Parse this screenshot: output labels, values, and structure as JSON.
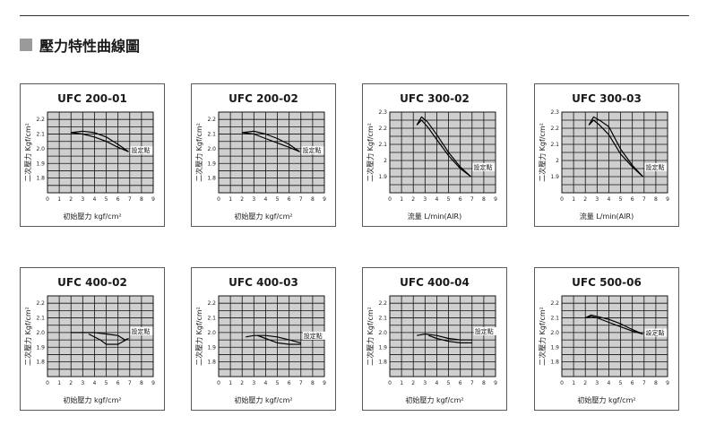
{
  "section": {
    "title": "壓力特性曲線圖"
  },
  "chart_data": [
    {
      "type": "line",
      "title": "UFC 200-01",
      "xlabel": "初始壓力 kgf/cm²",
      "ylabel": "二次壓力 Kgf/cm²",
      "xlim": [
        0,
        9
      ],
      "ylim": [
        1.7,
        2.25
      ],
      "xticks": [
        "0",
        "1",
        "2",
        "3",
        "4",
        "5",
        "6",
        "7",
        "8",
        "9"
      ],
      "yticks": [
        "1.8",
        "1.9",
        "2.0",
        "2.1",
        "2.2"
      ],
      "annotation": {
        "text": "設定點",
        "x": 6.9,
        "y": 1.98
      },
      "series": [
        {
          "x": [
            2.0,
            3.0,
            4.0,
            5.0,
            6.0,
            6.9
          ],
          "y": [
            2.11,
            2.12,
            2.11,
            2.08,
            2.03,
            1.98
          ]
        },
        {
          "x": [
            2.0,
            3.0,
            4.0,
            5.0,
            6.0,
            6.9
          ],
          "y": [
            2.11,
            2.1,
            2.08,
            2.05,
            2.01,
            1.98
          ]
        }
      ]
    },
    {
      "type": "line",
      "title": "UFC 200-02",
      "xlabel": "初始壓力 kgf/cm²",
      "ylabel": "二次壓力 Kgf/cm²",
      "xlim": [
        0,
        9
      ],
      "ylim": [
        1.7,
        2.25
      ],
      "xticks": [
        "0",
        "1",
        "2",
        "3",
        "4",
        "5",
        "6",
        "7",
        "8",
        "9"
      ],
      "yticks": [
        "1.8",
        "1.9",
        "2.0",
        "2.1",
        "2.2"
      ],
      "annotation": {
        "text": "設定點",
        "x": 6.9,
        "y": 1.98
      },
      "series": [
        {
          "x": [
            2.0,
            3.0,
            4.0,
            5.0,
            6.0,
            6.9
          ],
          "y": [
            2.11,
            2.12,
            2.1,
            2.07,
            2.03,
            1.98
          ]
        },
        {
          "x": [
            2.0,
            3.0,
            4.0,
            5.0,
            6.0,
            6.9
          ],
          "y": [
            2.11,
            2.1,
            2.07,
            2.04,
            2.01,
            1.98
          ]
        }
      ]
    },
    {
      "type": "line",
      "title": "UFC 300-02",
      "xlabel": "流量 L/min(AIR)",
      "ylabel": "二次壓力 Kgf/cm²",
      "xlim": [
        0,
        9
      ],
      "ylim": [
        1.8,
        2.3
      ],
      "xticks": [
        "0",
        "1",
        "2",
        "3",
        "4",
        "5",
        "6",
        "7",
        "8",
        "9"
      ],
      "yticks": [
        "1.9",
        "2",
        "2.1",
        "2.2",
        "2.3"
      ],
      "annotation": {
        "text": "設定點",
        "x": 6.9,
        "y": 1.95
      },
      "series": [
        {
          "x": [
            2.3,
            2.7,
            3.2,
            4.0,
            5.0,
            6.0,
            6.9
          ],
          "y": [
            2.22,
            2.27,
            2.24,
            2.16,
            2.05,
            1.96,
            1.9
          ]
        },
        {
          "x": [
            2.3,
            2.7,
            3.2,
            4.0,
            5.0,
            6.0,
            6.9
          ],
          "y": [
            2.22,
            2.25,
            2.21,
            2.13,
            2.03,
            1.95,
            1.9
          ]
        }
      ]
    },
    {
      "type": "line",
      "title": "UFC 300-03",
      "xlabel": "流量 L/min(AIR)",
      "ylabel": "二次壓力 Kgf/cm²",
      "xlim": [
        0,
        9
      ],
      "ylim": [
        1.8,
        2.3
      ],
      "xticks": [
        "0",
        "1",
        "2",
        "3",
        "4",
        "5",
        "6",
        "7",
        "8",
        "9"
      ],
      "yticks": [
        "1.9",
        "2",
        "2.1",
        "2.2",
        "2.3"
      ],
      "annotation": {
        "text": "設定點",
        "x": 6.9,
        "y": 1.95
      },
      "series": [
        {
          "x": [
            2.3,
            2.7,
            3.2,
            4.0,
            5.0,
            6.0,
            6.9
          ],
          "y": [
            2.22,
            2.27,
            2.25,
            2.21,
            2.07,
            1.97,
            1.9
          ]
        },
        {
          "x": [
            2.3,
            2.7,
            3.2,
            4.0,
            5.0,
            6.0,
            6.9
          ],
          "y": [
            2.22,
            2.25,
            2.22,
            2.16,
            2.04,
            1.96,
            1.9
          ]
        }
      ]
    },
    {
      "type": "line",
      "title": "UFC 400-02",
      "xlabel": "初始壓力 kgf/cm²",
      "ylabel": "二次壓力 Kgf/cm²",
      "xlim": [
        0,
        9
      ],
      "ylim": [
        1.7,
        2.25
      ],
      "xticks": [
        "0",
        "1",
        "2",
        "3",
        "4",
        "5",
        "6",
        "7",
        "8",
        "9"
      ],
      "yticks": [
        "1.8",
        "1.9",
        "2.0",
        "2.1",
        "2.2"
      ],
      "annotation": {
        "text": "設定點",
        "x": 6.9,
        "y": 2.0
      },
      "series": [
        {
          "x": [
            2.0,
            3.0,
            4.0,
            5.0,
            6.0,
            6.6,
            6.9
          ],
          "y": [
            2.0,
            2.0,
            2.0,
            1.99,
            1.98,
            1.95,
            1.96
          ]
        },
        {
          "x": [
            3.5,
            4.5,
            5.0,
            6.0,
            6.9
          ],
          "y": [
            1.99,
            1.95,
            1.92,
            1.92,
            1.96
          ]
        }
      ]
    },
    {
      "type": "line",
      "title": "UFC 400-03",
      "xlabel": "初始壓力 kgf/cm²",
      "ylabel": "二次壓力 Kgf/cm²",
      "xlim": [
        0,
        9
      ],
      "ylim": [
        1.7,
        2.25
      ],
      "xticks": [
        "0",
        "1",
        "2",
        "3",
        "4",
        "5",
        "6",
        "7",
        "8",
        "9"
      ],
      "yticks": [
        "1.8",
        "1.9",
        "2.0",
        "2.1",
        "2.2"
      ],
      "annotation": {
        "text": "設定點",
        "x": 7.0,
        "y": 1.97
      },
      "series": [
        {
          "x": [
            2.3,
            3.0,
            4.0,
            5.0,
            6.0,
            7.0
          ],
          "y": [
            1.97,
            1.98,
            1.98,
            1.97,
            1.95,
            1.93
          ]
        },
        {
          "x": [
            3.3,
            4.0,
            5.0,
            6.0,
            7.0
          ],
          "y": [
            1.98,
            1.96,
            1.93,
            1.92,
            1.92
          ]
        }
      ]
    },
    {
      "type": "line",
      "title": "UFC 400-04",
      "xlabel": "初始壓力 kgf/cm²",
      "ylabel": "二次壓力 Kgf/cm²",
      "xlim": [
        0,
        9
      ],
      "ylim": [
        1.7,
        2.25
      ],
      "xticks": [
        "0",
        "1",
        "2",
        "3",
        "4",
        "5",
        "6",
        "7",
        "8",
        "9"
      ],
      "yticks": [
        "1.8",
        "1.9",
        "2.0",
        "2.1",
        "2.2"
      ],
      "annotation": {
        "text": "設定點",
        "x": 7.0,
        "y": 2.0
      },
      "series": [
        {
          "x": [
            2.3,
            3.0,
            4.0,
            5.0,
            6.0,
            7.0
          ],
          "y": [
            1.98,
            1.99,
            1.98,
            1.96,
            1.95,
            1.95
          ]
        },
        {
          "x": [
            3.3,
            4.0,
            5.0,
            6.0,
            7.0
          ],
          "y": [
            1.98,
            1.96,
            1.94,
            1.93,
            1.93
          ]
        }
      ]
    },
    {
      "type": "line",
      "title": "UFC 500-06",
      "xlabel": "初始壓力 kgf/cm²",
      "ylabel": "二次壓力 Kgf/cm²",
      "xlim": [
        0,
        9
      ],
      "ylim": [
        1.7,
        2.25
      ],
      "xticks": [
        "0",
        "1",
        "2",
        "3",
        "4",
        "5",
        "6",
        "7",
        "8",
        "9"
      ],
      "yticks": [
        "1.8",
        "1.9",
        "2.0",
        "2.1",
        "2.2"
      ],
      "annotation": {
        "text": "設定點",
        "x": 6.9,
        "y": 1.99
      },
      "series": [
        {
          "x": [
            2.0,
            2.5,
            3.0,
            4.0,
            5.0,
            6.0,
            6.9
          ],
          "y": [
            2.1,
            2.12,
            2.11,
            2.09,
            2.06,
            2.02,
            1.99
          ]
        },
        {
          "x": [
            2.0,
            2.5,
            3.0,
            4.0,
            5.0,
            6.0,
            6.9
          ],
          "y": [
            2.1,
            2.11,
            2.1,
            2.07,
            2.04,
            2.01,
            1.99
          ]
        }
      ]
    }
  ]
}
